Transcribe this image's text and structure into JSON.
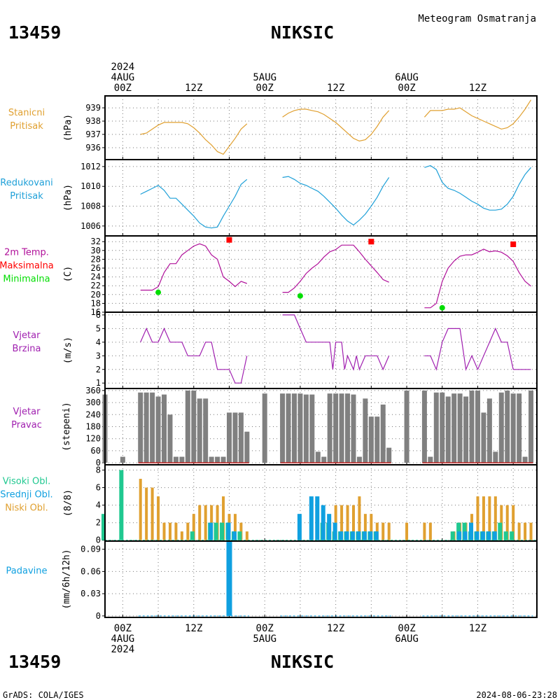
{
  "header": {
    "station_id": "13459",
    "station_name": "NIKSIC",
    "product": "Meteogram Osmatranja",
    "footer_left": "GrADS: COLA/IGES",
    "footer_right": "2024-08-06-23:28"
  },
  "time_axis": {
    "top_labels": [
      {
        "lines": [
          "2024",
          "4AUG",
          "00Z"
        ]
      },
      {
        "lines": [
          "12Z"
        ]
      },
      {
        "lines": [
          "5AUG",
          "00Z"
        ]
      },
      {
        "lines": [
          "12Z"
        ]
      },
      {
        "lines": [
          "6AUG",
          "00Z"
        ]
      },
      {
        "lines": [
          "12Z"
        ]
      }
    ],
    "bottom_labels": [
      {
        "lines": [
          "00Z",
          "4AUG",
          "2024"
        ]
      },
      {
        "lines": [
          "12Z"
        ]
      },
      {
        "lines": [
          "00Z",
          "5AUG"
        ]
      },
      {
        "lines": [
          "12Z"
        ]
      },
      {
        "lines": [
          "00Z",
          "6AUG"
        ]
      },
      {
        "lines": [
          "12Z"
        ]
      }
    ],
    "hours": [
      0,
      12,
      24,
      36,
      48,
      60
    ],
    "range_hours": [
      -3,
      70
    ]
  },
  "colors": {
    "pressure": "#e0a030",
    "reduced_pressure": "#1fa0d8",
    "temperature": "#b0109a",
    "tmax": "#ff0000",
    "tmin": "#00dd00",
    "wind": "#a020b0",
    "wind_dir_bar": "#808080",
    "wind_dir_base": "#c02020",
    "high_cloud": "#20c890",
    "mid_cloud": "#10a0e0",
    "low_cloud": "#e0a030",
    "precip": "#10a0e0"
  },
  "chart_data": [
    {
      "type": "line",
      "panel": "stanicni-pritisak",
      "title_lines": [
        "Stanicni",
        "Pritisak"
      ],
      "ylabel": "(hPa)",
      "yticks": [
        936,
        937,
        938,
        939
      ],
      "ylim": [
        935.1,
        939.9
      ],
      "series": [
        {
          "x": [
            3,
            4,
            5,
            6,
            7,
            8,
            9,
            10,
            11,
            12,
            13,
            14,
            15,
            16,
            17,
            18,
            19,
            20,
            21
          ],
          "y": [
            937.0,
            937.1,
            937.4,
            937.7,
            937.9,
            937.9,
            937.9,
            937.9,
            937.8,
            937.5,
            937.1,
            936.6,
            936.2,
            935.7,
            935.5,
            936.1,
            936.7,
            937.4,
            937.8
          ]
        },
        {
          "x": [
            27,
            28,
            29,
            30,
            31,
            32,
            33,
            34,
            35,
            36,
            37,
            38,
            39,
            40,
            41,
            42,
            43,
            44,
            45
          ],
          "y": [
            938.3,
            938.6,
            938.8,
            938.9,
            938.9,
            938.8,
            938.7,
            938.5,
            938.2,
            937.9,
            937.5,
            937.1,
            936.7,
            936.5,
            936.6,
            937.0,
            937.6,
            938.3,
            938.8
          ]
        },
        {
          "x": [
            51,
            52,
            53,
            54,
            55,
            56,
            57,
            58,
            59,
            60,
            61,
            62,
            63,
            64,
            65,
            66,
            67,
            68,
            69
          ],
          "y": [
            938.3,
            938.8,
            938.8,
            938.8,
            938.9,
            938.9,
            939.0,
            938.7,
            938.4,
            938.2,
            938.0,
            937.8,
            937.6,
            937.4,
            937.5,
            937.8,
            938.3,
            938.9,
            939.6
          ]
        }
      ]
    },
    {
      "type": "line",
      "panel": "redukovani-pritisak",
      "title_lines": [
        "Redukovani",
        "Pritisak"
      ],
      "ylabel": "(hPa)",
      "yticks": [
        1006,
        1008,
        1010,
        1012
      ],
      "ylim": [
        1005.0,
        1012.7
      ],
      "series": [
        {
          "x": [
            3,
            4,
            5,
            6,
            7,
            8,
            9,
            10,
            11,
            12,
            13,
            14,
            15,
            16,
            17,
            18,
            19,
            20,
            21
          ],
          "y": [
            1009.2,
            1009.5,
            1009.8,
            1010.1,
            1009.6,
            1008.8,
            1008.8,
            1008.2,
            1007.6,
            1007.0,
            1006.3,
            1005.9,
            1005.8,
            1005.9,
            1007.0,
            1008.0,
            1009.0,
            1010.2,
            1010.7
          ]
        },
        {
          "x": [
            27,
            28,
            29,
            30,
            31,
            32,
            33,
            34,
            35,
            36,
            37,
            38,
            39,
            40,
            41,
            42,
            43,
            44,
            45
          ],
          "y": [
            1010.9,
            1011.0,
            1010.7,
            1010.3,
            1010.1,
            1009.8,
            1009.5,
            1009.0,
            1008.4,
            1007.8,
            1007.1,
            1006.5,
            1006.1,
            1006.6,
            1007.2,
            1008.0,
            1008.9,
            1010.0,
            1010.9
          ]
        },
        {
          "x": [
            51,
            52,
            53,
            54,
            55,
            56,
            57,
            58,
            59,
            60,
            61,
            62,
            63,
            64,
            65,
            66,
            67,
            68,
            69
          ],
          "y": [
            1011.9,
            1012.1,
            1011.7,
            1010.4,
            1009.8,
            1009.6,
            1009.3,
            1008.9,
            1008.5,
            1008.2,
            1007.8,
            1007.6,
            1007.6,
            1007.7,
            1008.2,
            1009.0,
            1010.2,
            1011.2,
            1011.9
          ]
        }
      ]
    },
    {
      "type": "line",
      "panel": "temperatura",
      "title_lines": [
        "2m Temp.",
        "Maksimalna",
        "Minimalna"
      ],
      "ylabel": "(C)",
      "yticks": [
        16,
        18,
        20,
        22,
        24,
        26,
        28,
        30,
        32
      ],
      "ylim": [
        16,
        33.3
      ],
      "series": [
        {
          "name": "2m Temp.",
          "x": [
            3,
            4,
            5,
            6,
            7,
            8,
            9,
            10,
            11,
            12,
            13,
            14,
            15,
            16,
            17,
            18,
            19,
            20,
            21
          ],
          "y": [
            21.0,
            21.0,
            21.0,
            21.8,
            25.0,
            27.0,
            27.0,
            29.0,
            30.0,
            31.0,
            31.5,
            31.0,
            29.0,
            28.0,
            24.0,
            23.0,
            21.8,
            23.0,
            22.5
          ]
        },
        {
          "name": "2m Temp.",
          "x": [
            27,
            28,
            29,
            30,
            31,
            32,
            33,
            34,
            35,
            36,
            37,
            38,
            39,
            40,
            41,
            42,
            43,
            44,
            45
          ],
          "y": [
            20.5,
            20.5,
            21.5,
            23.0,
            24.8,
            26.0,
            27.0,
            28.5,
            29.7,
            30.2,
            31.2,
            31.2,
            31.2,
            29.7,
            28.0,
            26.5,
            25.0,
            23.4,
            22.8
          ]
        },
        {
          "name": "2m Temp.",
          "x": [
            51,
            52,
            53,
            54,
            55,
            56,
            57,
            58,
            59,
            60,
            61,
            62,
            63,
            64,
            65,
            66,
            67,
            68,
            69
          ],
          "y": [
            17.0,
            17.0,
            18.0,
            23.0,
            26.0,
            27.6,
            28.7,
            29.0,
            29.0,
            29.6,
            30.3,
            29.7,
            29.9,
            29.6,
            28.8,
            27.5,
            25.0,
            23.0,
            21.9
          ]
        }
      ],
      "tmax_points": [
        {
          "x": 18,
          "y": 32.4
        },
        {
          "x": 42,
          "y": 32.0
        },
        {
          "x": 66,
          "y": 31.4
        }
      ],
      "tmin_points": [
        {
          "x": 6,
          "y": 20.5
        },
        {
          "x": 30,
          "y": 19.7
        },
        {
          "x": 54,
          "y": 17.0
        }
      ]
    },
    {
      "type": "line",
      "panel": "vjetar-brzina",
      "title_lines": [
        "Vjetar",
        "Brzina"
      ],
      "ylabel": "(m/s)",
      "yticks": [
        1,
        2,
        3,
        4,
        5,
        6
      ],
      "ylim": [
        0.6,
        6.2
      ],
      "series": [
        {
          "x": [
            3,
            4,
            5,
            6,
            7,
            8,
            9,
            10,
            11,
            12,
            13,
            14,
            15,
            16,
            17,
            18,
            19,
            20,
            21
          ],
          "y": [
            4,
            5,
            4,
            4,
            5,
            4,
            4,
            4,
            3,
            3,
            3,
            4,
            4,
            2,
            2,
            2,
            1,
            1,
            3
          ]
        },
        {
          "x": [
            27,
            28,
            29,
            30,
            31,
            32,
            33,
            34,
            35,
            35.5,
            36,
            37,
            37.5,
            38,
            39,
            39.5,
            40,
            41,
            42,
            43,
            44,
            45
          ],
          "y": [
            6,
            6,
            6,
            5,
            4,
            4,
            4,
            4,
            4,
            2,
            4,
            4,
            2,
            3,
            2,
            3,
            2,
            3,
            3,
            3,
            2,
            3
          ]
        },
        {
          "x": [
            51,
            52,
            53,
            54,
            55,
            56,
            57,
            58,
            59,
            60,
            61,
            62,
            63,
            64,
            65,
            66,
            67,
            68,
            69
          ],
          "y": [
            3,
            3,
            2,
            4,
            5,
            5,
            5,
            2,
            3,
            2,
            3,
            4,
            5,
            4,
            4,
            2,
            2,
            2,
            2
          ]
        }
      ]
    },
    {
      "type": "bar",
      "panel": "vjetar-pravac",
      "title_lines": [
        "Vjetar",
        "Pravac"
      ],
      "ylabel": "(stepeni)",
      "yticks": [
        0,
        60,
        120,
        180,
        240,
        300,
        360
      ],
      "ylim": [
        -10,
        370
      ],
      "x": [
        -3,
        0,
        3,
        4,
        5,
        6,
        7,
        8,
        9,
        10,
        11,
        12,
        13,
        14,
        15,
        16,
        17,
        18,
        19,
        20,
        21,
        24,
        27,
        28,
        29,
        30,
        31,
        32,
        33,
        34,
        35,
        36,
        37,
        38,
        39,
        40,
        41,
        42,
        43,
        44,
        45,
        48,
        51,
        52,
        53,
        54,
        55,
        56,
        57,
        58,
        59,
        60,
        61,
        62,
        63,
        64,
        65,
        66,
        67,
        68,
        69
      ],
      "values": [
        340,
        30,
        350,
        350,
        350,
        330,
        340,
        240,
        30,
        30,
        360,
        360,
        320,
        320,
        30,
        30,
        30,
        250,
        250,
        250,
        155,
        345,
        345,
        345,
        345,
        345,
        340,
        340,
        55,
        30,
        345,
        345,
        345,
        345,
        340,
        30,
        320,
        230,
        230,
        290,
        75,
        360,
        360,
        30,
        350,
        350,
        330,
        345,
        345,
        330,
        360,
        360,
        250,
        320,
        55,
        350,
        360,
        345,
        345,
        30,
        360
      ]
    },
    {
      "type": "bar",
      "panel": "oblacnost",
      "title_lines": [
        "Visoki Obl.",
        "Srednji Obl.",
        "Niski Obl."
      ],
      "ylabel": "(8/8)",
      "yticks": [
        0,
        2,
        4,
        6,
        8
      ],
      "ylim": [
        -0.1,
        8.6
      ],
      "series": [
        {
          "name": "Visoki Obl.",
          "x": [
            -3,
            0,
            12,
            15,
            16,
            17,
            18,
            19,
            20,
            34,
            35,
            36,
            37,
            38,
            39,
            40,
            41,
            42,
            43,
            56,
            57,
            58,
            59,
            60,
            61,
            62,
            63,
            64,
            65,
            66
          ],
          "y": [
            3,
            8,
            1,
            2,
            2,
            2,
            2,
            1,
            1,
            2,
            2,
            1,
            1,
            1,
            1,
            1,
            1,
            1,
            1,
            1,
            2,
            2,
            1,
            1,
            1,
            1,
            1,
            2,
            1,
            1
          ]
        },
        {
          "name": "Srednji Obl.",
          "x": [
            15,
            18,
            19,
            30,
            32,
            33,
            34,
            35,
            36,
            37,
            38,
            39,
            40,
            41,
            42,
            43,
            57,
            58,
            59,
            60,
            61,
            62,
            63
          ],
          "y": [
            2,
            2,
            1,
            3,
            5,
            5,
            4,
            3,
            2,
            1,
            1,
            1,
            1,
            1,
            1,
            1,
            1,
            1,
            2,
            1,
            1,
            1,
            1
          ]
        },
        {
          "name": "Niski Obl.",
          "x": [
            3,
            4,
            5,
            6,
            7,
            8,
            9,
            10,
            11,
            12,
            13,
            14,
            15,
            16,
            17,
            18,
            19,
            20,
            21,
            27,
            28,
            29,
            30,
            31,
            32,
            33,
            34,
            35,
            36,
            37,
            38,
            39,
            40,
            41,
            42,
            43,
            44,
            45,
            48,
            51,
            52,
            53,
            54,
            55,
            56,
            57,
            58,
            59,
            60,
            61,
            62,
            63,
            64,
            65,
            66,
            67,
            68,
            69
          ],
          "y": [
            7,
            6,
            6,
            5,
            2,
            2,
            2,
            1,
            2,
            3,
            4,
            4,
            4,
            4,
            5,
            3,
            3,
            2,
            1,
            0,
            0,
            0,
            0,
            0,
            0,
            0,
            0,
            2,
            4,
            4,
            4,
            4,
            5,
            3,
            3,
            2,
            2,
            2,
            2,
            2,
            2,
            0,
            0,
            0,
            1,
            2,
            2,
            3,
            5,
            5,
            5,
            5,
            4,
            4,
            4,
            2,
            2,
            2
          ]
        }
      ]
    },
    {
      "type": "bar",
      "panel": "padavine",
      "title_lines": [
        "Padavine"
      ],
      "ylabel": "(mm/6h/12h)",
      "yticks": [
        0,
        0.03,
        0.06,
        0.09
      ],
      "ylim": [
        -0.002,
        0.101
      ],
      "x": [
        18
      ],
      "values": [
        0.1
      ]
    }
  ]
}
